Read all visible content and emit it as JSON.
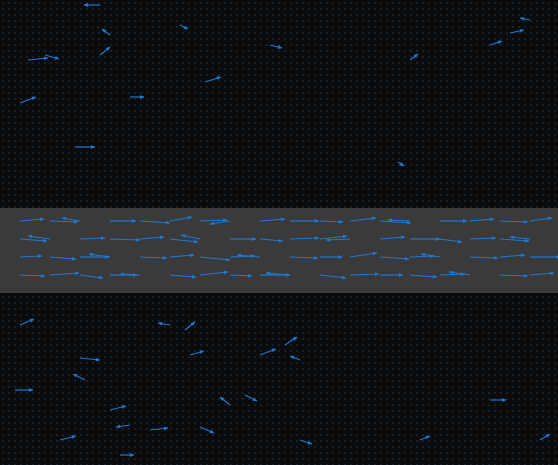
{
  "chart_data": {
    "type": "quiver",
    "xlim": [
      0,
      558
    ],
    "ylim": [
      0,
      465
    ],
    "tick_labels": false,
    "grid": false,
    "band": {
      "y_range": [
        172,
        257
      ],
      "color": "#3a3a3a"
    },
    "series": [
      {
        "color": "#1f78d0",
        "x": [
          20,
          50,
          80,
          110,
          140,
          170,
          200,
          230,
          260,
          290,
          320,
          350,
          380,
          410,
          440,
          470,
          500,
          530,
          20,
          50,
          80,
          110,
          140,
          170,
          200,
          230,
          260,
          290,
          320,
          350,
          380,
          410,
          440,
          470,
          500,
          530,
          20,
          50,
          80,
          110,
          140,
          170,
          200,
          230,
          260,
          290,
          320,
          350,
          380,
          410,
          440,
          470,
          500,
          530,
          20,
          50,
          80,
          110,
          140,
          170,
          200,
          230,
          260,
          290,
          320,
          350,
          380,
          410,
          440,
          470,
          500,
          530
        ],
        "y": [
          244,
          244,
          244,
          244,
          244,
          244,
          244,
          244,
          244,
          244,
          244,
          244,
          244,
          244,
          244,
          244,
          244,
          244,
          226,
          226,
          226,
          226,
          226,
          226,
          226,
          226,
          226,
          226,
          226,
          226,
          226,
          226,
          226,
          226,
          226,
          226,
          208,
          208,
          208,
          208,
          208,
          208,
          208,
          208,
          208,
          208,
          208,
          208,
          208,
          208,
          208,
          208,
          208,
          208,
          190,
          190,
          190,
          190,
          190,
          190,
          190,
          190,
          190,
          190,
          190,
          190,
          190,
          190,
          190,
          190,
          190,
          190
        ],
        "u": [
          24,
          28,
          -18,
          26,
          30,
          22,
          27,
          -20,
          25,
          29,
          23,
          26,
          31,
          -22,
          27,
          24,
          28,
          22,
          27,
          -22,
          25,
          30,
          24,
          28,
          -19,
          26,
          23,
          29,
          27,
          -24,
          25,
          30,
          22,
          26,
          29,
          -20,
          22,
          26,
          29,
          -21,
          27,
          24,
          30,
          25,
          -23,
          28,
          22,
          27,
          29,
          24,
          -19,
          28,
          25,
          30,
          25,
          29,
          23,
          27,
          -20,
          26,
          28,
          22,
          30,
          -24,
          26,
          29,
          23,
          27,
          25,
          -21,
          28,
          24
        ],
        "v": [
          2,
          -1,
          3,
          0,
          -2,
          4,
          1,
          -3,
          2,
          0,
          -1,
          3,
          -2,
          1,
          0,
          2,
          -1,
          3,
          -2,
          3,
          1,
          -1,
          2,
          -3,
          4,
          0,
          -2,
          1,
          3,
          -1,
          2,
          0,
          -3,
          1,
          -2,
          2,
          1,
          -2,
          0,
          3,
          -1,
          2,
          -3,
          1,
          2,
          -1,
          0,
          4,
          -2,
          1,
          3,
          -1,
          2,
          0,
          -1,
          2,
          -3,
          0,
          1,
          -2,
          3,
          -1,
          0,
          2,
          -3,
          1,
          0,
          -2,
          1,
          3,
          -1,
          2
        ]
      },
      {
        "color": "#1f78d0",
        "x": [
          28,
          45,
          100,
          110,
          20,
          130,
          205,
          270,
          75,
          100,
          398,
          490,
          510,
          530,
          180,
          410,
          20,
          15,
          80,
          185,
          190,
          260,
          285,
          300,
          85,
          110,
          130,
          150,
          200,
          230,
          60,
          120,
          300,
          420,
          490,
          540,
          245,
          170
        ],
        "y": [
          405,
          410,
          410,
          430,
          362,
          368,
          383,
          420,
          318,
          460,
          303,
          420,
          432,
          445,
          440,
          405,
          140,
          75,
          107,
          135,
          110,
          110,
          120,
          105,
          85,
          55,
          40,
          35,
          38,
          60,
          25,
          10,
          25,
          25,
          65,
          25,
          70,
          140
        ],
        "u": [
          20,
          14,
          10,
          -8,
          16,
          14,
          16,
          12,
          20,
          -16,
          6,
          12,
          14,
          -10,
          8,
          8,
          14,
          18,
          20,
          10,
          14,
          16,
          12,
          -10,
          -12,
          16,
          -14,
          18,
          14,
          -10,
          16,
          14,
          12,
          10,
          16,
          10,
          12,
          -12
        ],
        "v": [
          2,
          -4,
          8,
          6,
          6,
          0,
          5,
          -3,
          0,
          0,
          -4,
          4,
          3,
          2,
          -4,
          6,
          6,
          0,
          -2,
          8,
          4,
          6,
          8,
          4,
          6,
          4,
          -2,
          2,
          -6,
          8,
          4,
          0,
          -4,
          4,
          0,
          6,
          -6,
          2
        ]
      }
    ]
  }
}
